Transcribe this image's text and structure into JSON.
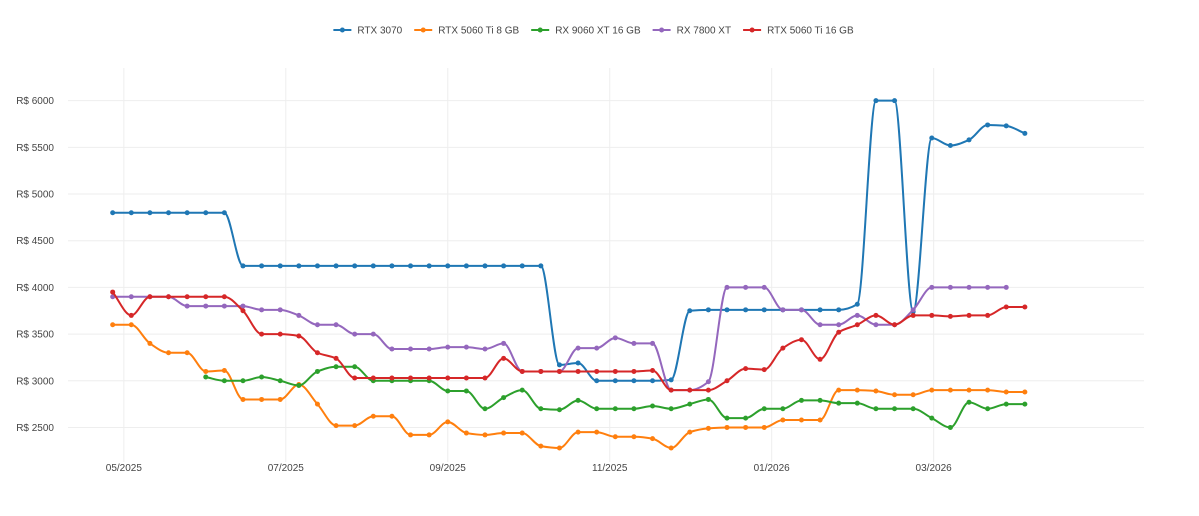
{
  "chart_data": {
    "type": "line",
    "title": "",
    "xlabel": "",
    "ylabel": "",
    "y_prefix": "R$ ",
    "ylim": [
      2130,
      6350
    ],
    "yticks": [
      2500,
      3000,
      3500,
      4000,
      4500,
      5000,
      5500,
      6000
    ],
    "ytick_labels": [
      "R$ 2500",
      "R$ 3000",
      "R$ 3500",
      "R$ 4000",
      "R$ 4500",
      "R$ 5000",
      "R$ 5500",
      "R$ 6000"
    ],
    "x_unit": "week index starting at week of 2025-04-28",
    "xlim": [
      -2.4,
      55.4
    ],
    "xticks": [
      0.6,
      9.3,
      18.0,
      26.7,
      35.4,
      44.1
    ],
    "xtick_labels": [
      "05/2025",
      "07/2025",
      "09/2025",
      "11/2025",
      "01/2026",
      "03/2026"
    ],
    "grid": true,
    "legend_position": "top-center",
    "series": [
      {
        "name": "RTX 3070",
        "color": "#1f77b4",
        "x": [
          0,
          1,
          2,
          3,
          4,
          5,
          6,
          7,
          8,
          9,
          10,
          11,
          12,
          13,
          14,
          15,
          16,
          17,
          18,
          19,
          20,
          21,
          22,
          23,
          24,
          25,
          26,
          27,
          28,
          29,
          30,
          31,
          32,
          33,
          34,
          35,
          36,
          37,
          38,
          39,
          40,
          41,
          42,
          43,
          44,
          45,
          46,
          47,
          48,
          49
        ],
        "y": [
          4800,
          4800,
          4800,
          4800,
          4800,
          4800,
          4800,
          4230,
          4230,
          4230,
          4230,
          4230,
          4230,
          4230,
          4230,
          4230,
          4230,
          4230,
          4230,
          4230,
          4230,
          4230,
          4230,
          4230,
          3170,
          3190,
          3000,
          3000,
          3000,
          3000,
          3010,
          3750,
          3760,
          3760,
          3760,
          3760,
          3760,
          3760,
          3760,
          3760,
          3820,
          6000,
          6000,
          3740,
          5600,
          5520,
          5580,
          5740,
          5730,
          5650
        ]
      },
      {
        "name": "RTX 5060 Ti 8 GB",
        "color": "#ff7f0e",
        "x": [
          0,
          1,
          2,
          3,
          4,
          5,
          6,
          7,
          8,
          9,
          10,
          11,
          12,
          13,
          14,
          15,
          16,
          17,
          18,
          19,
          20,
          21,
          22,
          23,
          24,
          25,
          26,
          27,
          28,
          29,
          30,
          31,
          32,
          33,
          34,
          35,
          36,
          37,
          38,
          39,
          40,
          41,
          42,
          43,
          44,
          45,
          46,
          47,
          48,
          49
        ],
        "y": [
          3600,
          3600,
          3400,
          3300,
          3300,
          3100,
          3110,
          2800,
          2800,
          2800,
          2960,
          2750,
          2520,
          2520,
          2620,
          2620,
          2420,
          2420,
          2560,
          2440,
          2420,
          2440,
          2440,
          2300,
          2280,
          2450,
          2450,
          2400,
          2400,
          2380,
          2280,
          2450,
          2490,
          2500,
          2500,
          2500,
          2580,
          2580,
          2580,
          2900,
          2900,
          2890,
          2850,
          2850,
          2900,
          2900,
          2900,
          2900,
          2880,
          2880
        ]
      },
      {
        "name": "RX 9060 XT 16 GB",
        "color": "#2ca02c",
        "x": [
          5,
          6,
          7,
          8,
          9,
          10,
          11,
          12,
          13,
          14,
          15,
          16,
          17,
          18,
          19,
          20,
          21,
          22,
          23,
          24,
          25,
          26,
          27,
          28,
          29,
          30,
          31,
          32,
          33,
          34,
          35,
          36,
          37,
          38,
          39,
          40,
          41,
          42,
          43,
          44,
          45,
          46,
          47,
          48,
          49
        ],
        "y": [
          3040,
          3000,
          3000,
          3040,
          3000,
          2950,
          3100,
          3150,
          3150,
          3000,
          3000,
          3000,
          3000,
          2890,
          2890,
          2700,
          2820,
          2900,
          2700,
          2690,
          2790,
          2700,
          2700,
          2700,
          2730,
          2700,
          2750,
          2800,
          2600,
          2600,
          2700,
          2700,
          2790,
          2790,
          2760,
          2760,
          2700,
          2700,
          2700,
          2600,
          2500,
          2770,
          2700,
          2750,
          2750
        ]
      },
      {
        "name": "RX 7800 XT",
        "color": "#9467bd",
        "x": [
          0,
          1,
          2,
          3,
          4,
          5,
          6,
          7,
          8,
          9,
          10,
          11,
          12,
          13,
          14,
          15,
          16,
          17,
          18,
          19,
          20,
          21,
          22,
          23,
          24,
          25,
          26,
          27,
          28,
          29,
          30,
          31,
          32,
          33,
          34,
          35,
          36,
          37,
          38,
          39,
          40,
          41,
          42,
          43,
          44,
          45,
          46,
          47,
          48
        ],
        "y": [
          3900,
          3900,
          3900,
          3900,
          3800,
          3800,
          3800,
          3800,
          3760,
          3760,
          3700,
          3600,
          3600,
          3500,
          3500,
          3340,
          3340,
          3340,
          3360,
          3360,
          3340,
          3400,
          3100,
          3100,
          3100,
          3350,
          3350,
          3460,
          3400,
          3400,
          2900,
          2900,
          2990,
          4000,
          4000,
          4000,
          3760,
          3760,
          3600,
          3600,
          3700,
          3600,
          3600,
          3760,
          4000,
          4000,
          4000,
          4000,
          4000
        ]
      },
      {
        "name": "RTX 5060 Ti 16 GB",
        "color": "#d62728",
        "x": [
          0,
          1,
          2,
          3,
          4,
          5,
          6,
          7,
          8,
          9,
          10,
          11,
          12,
          13,
          14,
          15,
          16,
          17,
          18,
          19,
          20,
          21,
          22,
          23,
          24,
          25,
          26,
          27,
          28,
          29,
          30,
          31,
          32,
          33,
          34,
          35,
          36,
          37,
          38,
          39,
          40,
          41,
          42,
          43,
          44,
          45,
          46,
          47,
          48,
          49
        ],
        "y": [
          3950,
          3700,
          3900,
          3900,
          3900,
          3900,
          3900,
          3750,
          3500,
          3500,
          3480,
          3300,
          3240,
          3030,
          3030,
          3030,
          3030,
          3030,
          3030,
          3030,
          3030,
          3240,
          3100,
          3100,
          3100,
          3100,
          3100,
          3100,
          3100,
          3110,
          2900,
          2900,
          2900,
          3000,
          3130,
          3120,
          3350,
          3440,
          3230,
          3520,
          3600,
          3700,
          3600,
          3700,
          3700,
          3690,
          3700,
          3700,
          3790,
          3790
        ]
      }
    ]
  }
}
